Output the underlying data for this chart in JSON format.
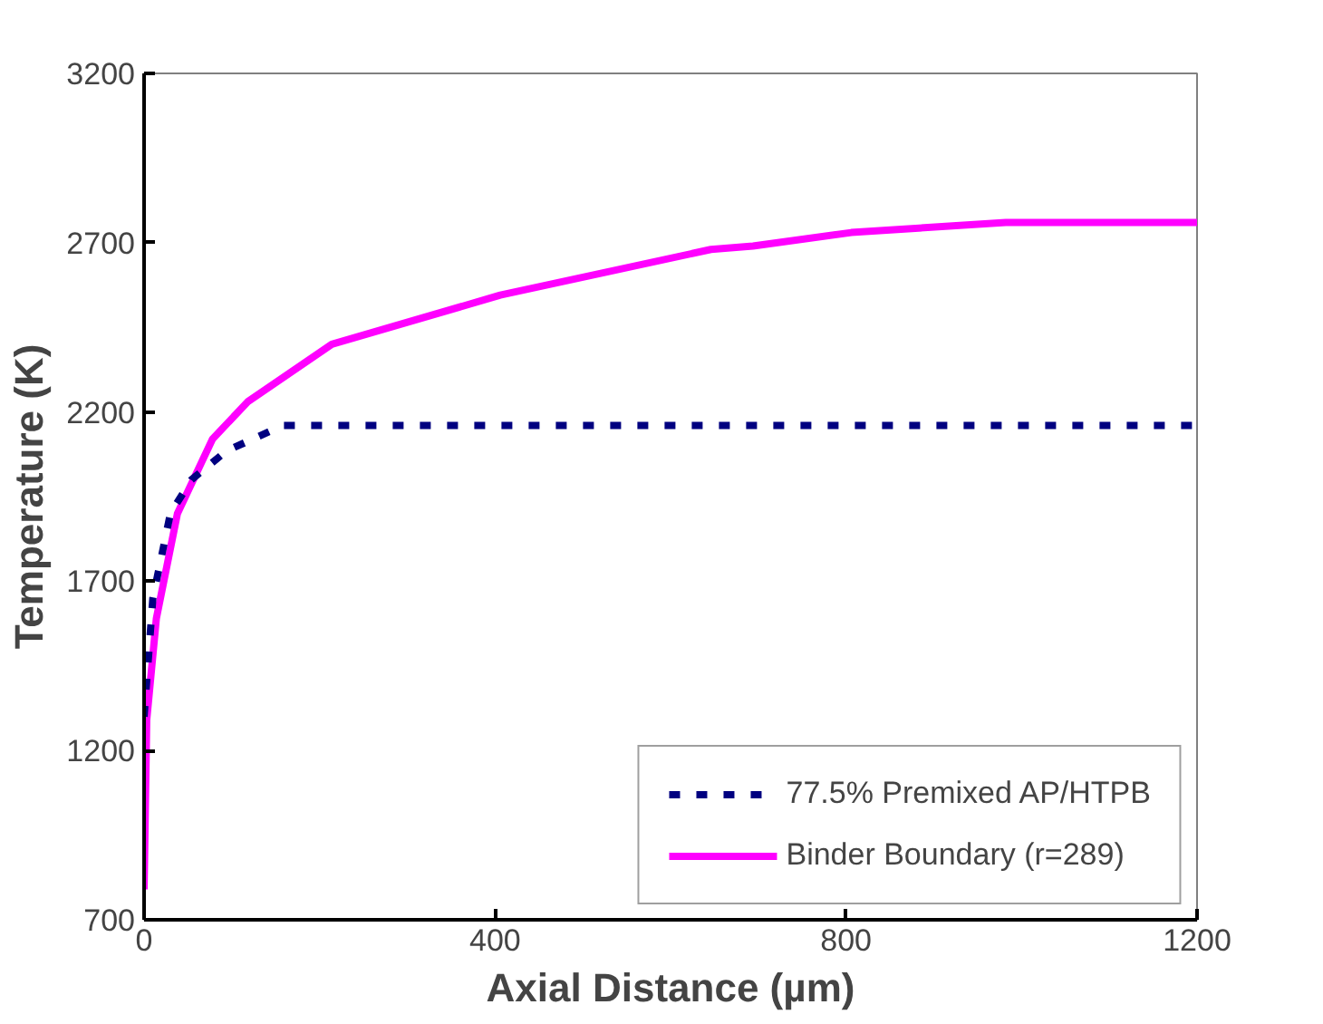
{
  "chart_data": {
    "type": "line",
    "xlabel": "Axial Distance (µm)",
    "ylabel": "Temperature (K)",
    "xlim": [
      0,
      1200
    ],
    "ylim": [
      700,
      3200
    ],
    "xticks": [
      0,
      400,
      800,
      1200
    ],
    "yticks": [
      700,
      1200,
      1700,
      2200,
      2700,
      3200
    ],
    "grid": false,
    "legend": "bottom right",
    "series": [
      {
        "name": "77.5% Premixed AP/HTPB",
        "color": "#000080",
        "line_style": "dashed",
        "x": [
          0,
          10,
          30,
          54,
          94,
          158,
          250,
          1200
        ],
        "values": [
          1300,
          1650,
          1900,
          2000,
          2085,
          2160,
          2160,
          2160
        ]
      },
      {
        "name": "Binder Boundary (r=289)",
        "color": "#ff00ff",
        "line_style": "solid",
        "x": [
          0,
          3,
          14,
          38,
          78,
          118,
          214,
          406,
          646,
          694,
          806,
          982,
          1200
        ],
        "values": [
          790,
          1290,
          1590,
          1900,
          2120,
          2230,
          2400,
          2545,
          2680,
          2690,
          2730,
          2760,
          2760
        ]
      }
    ]
  }
}
